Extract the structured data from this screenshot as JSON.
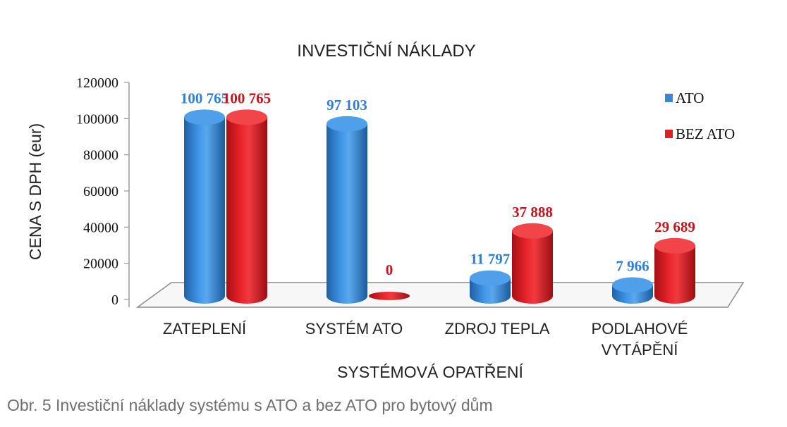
{
  "chart_data": {
    "type": "bar",
    "title": "INVESTIČNÍ NÁKLADY",
    "xlabel": "SYSTÉMOVÁ OPATŘENÍ",
    "ylabel": "CENA S DPH (eur)",
    "ylim": [
      0,
      120000
    ],
    "yticks": [
      "0",
      "20000",
      "40000",
      "60000",
      "80000",
      "100000",
      "120000"
    ],
    "categories": [
      [
        "ZATEPLENÍ"
      ],
      [
        "SYSTÉM ATO"
      ],
      [
        "ZDROJ TEPLA"
      ],
      [
        "PODLAHOVÉ",
        "VYTÁPĚNÍ"
      ]
    ],
    "series": [
      {
        "name": "ATO",
        "color": "#3a86d4",
        "values": [
          100765,
          97103,
          11797,
          7966
        ],
        "data_labels": [
          "100 765",
          "97 103",
          "11 797",
          "7 966"
        ],
        "label_color": "#2f7fd6"
      },
      {
        "name": "BEZ ATO",
        "color": "#e21c23",
        "values": [
          100765,
          0,
          37888,
          29689
        ],
        "data_labels": [
          "100 765",
          "0",
          "37 888",
          "29 689"
        ],
        "label_color": "#c4161c"
      }
    ],
    "legend": "right",
    "grid": false,
    "style": "3d-cylinder"
  },
  "caption": "Obr. 5 Investiční náklady systému s ATO a bez ATO pro bytový dům"
}
